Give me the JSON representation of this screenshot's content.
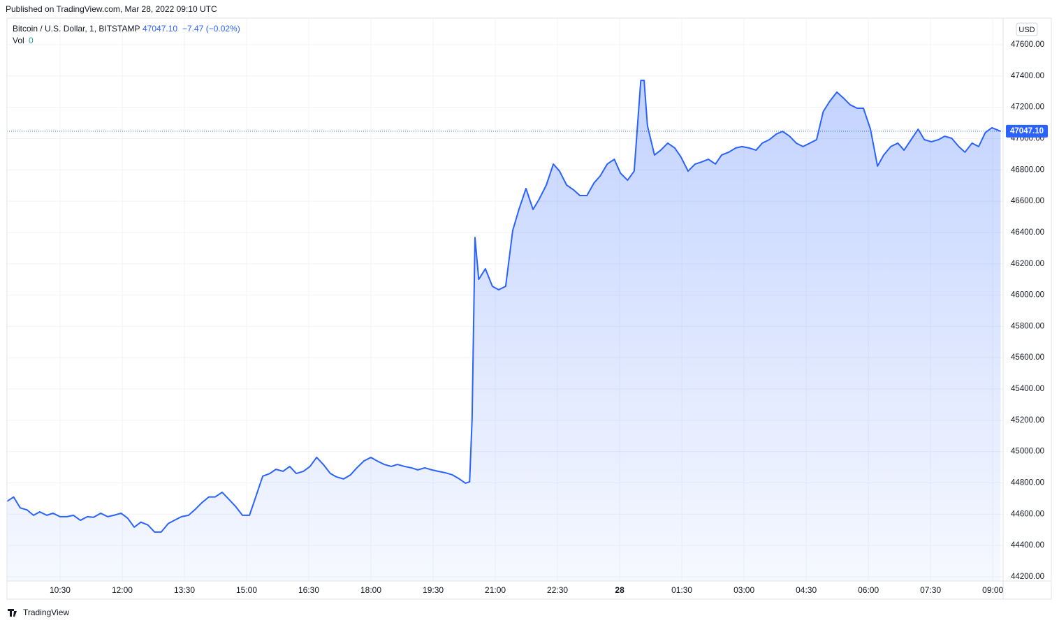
{
  "header": {
    "published": "Published on TradingView.com, Mar 28, 2022 09:10 UTC",
    "footer": "TradingView"
  },
  "chart_data": {
    "type": "area",
    "title": "Bitcoin / U.S. Dollar, 1, BITSTAMP",
    "price_label": "47047.10",
    "change_label": "−7.47 (−0.02%)",
    "volume_label": "Vol",
    "volume_value_label": "0",
    "currency": "USD",
    "color": "#2962ff",
    "grid": true,
    "x": [
      9.22,
      9.38,
      9.54,
      9.7,
      9.86,
      10.01,
      10.18,
      10.33,
      10.5,
      10.67,
      10.82,
      10.99,
      11.16,
      11.31,
      11.48,
      11.65,
      11.8,
      11.97,
      12.13,
      12.29,
      12.45,
      12.62,
      12.78,
      12.94,
      13.11,
      13.26,
      13.43,
      13.6,
      13.75,
      13.92,
      14.09,
      14.24,
      14.41,
      14.57,
      14.73,
      14.9,
      15.07,
      15.22,
      15.39,
      15.56,
      15.71,
      15.88,
      16.04,
      16.2,
      16.37,
      16.53,
      16.69,
      16.85,
      17.02,
      17.17,
      17.34,
      17.51,
      17.66,
      17.83,
      18.0,
      18.15,
      18.32,
      18.49,
      18.64,
      18.81,
      18.98,
      19.13,
      19.3,
      19.47,
      19.62,
      19.79,
      19.96,
      20.11,
      20.28,
      20.38,
      20.44,
      20.51,
      20.6,
      20.76,
      20.93,
      21.08,
      21.25,
      21.42,
      21.57,
      21.74,
      21.91,
      22.06,
      22.23,
      22.4,
      22.55,
      22.72,
      22.89,
      23.04,
      23.21,
      23.38,
      23.53,
      23.7,
      23.87,
      24.02,
      24.19,
      24.35,
      24.51,
      24.59,
      24.67,
      24.84,
      24.99,
      25.16,
      25.33,
      25.48,
      25.65,
      25.82,
      25.97,
      26.14,
      26.31,
      26.46,
      26.63,
      26.8,
      26.95,
      27.12,
      27.29,
      27.44,
      27.61,
      27.78,
      27.93,
      28.1,
      28.26,
      28.42,
      28.59,
      28.75,
      28.91,
      29.07,
      29.24,
      29.39,
      29.56,
      29.73,
      29.88,
      30.05,
      30.22,
      30.37,
      30.54,
      30.71,
      30.86,
      31.03,
      31.2,
      31.35,
      31.52,
      31.69,
      31.84,
      32.01,
      32.18,
      32.33,
      32.5,
      32.66,
      32.82,
      32.98,
      33.19
    ],
    "values": [
      44682,
      44710,
      44640,
      44628,
      44593,
      44615,
      44593,
      44606,
      44584,
      44584,
      44593,
      44561,
      44584,
      44580,
      44606,
      44584,
      44593,
      44606,
      44575,
      44517,
      44549,
      44531,
      44486,
      44486,
      44540,
      44561,
      44584,
      44593,
      44628,
      44673,
      44710,
      44710,
      44740,
      44696,
      44651,
      44593,
      44593,
      44710,
      44843,
      44860,
      44887,
      44874,
      44905,
      44860,
      44874,
      44905,
      44963,
      44918,
      44860,
      44838,
      44825,
      44852,
      44896,
      44940,
      44963,
      44940,
      44918,
      44905,
      44918,
      44905,
      44896,
      44883,
      44896,
      44883,
      44874,
      44865,
      44852,
      44829,
      44798,
      44807,
      45208,
      46368,
      46100,
      46168,
      46056,
      46034,
      46056,
      46413,
      46547,
      46681,
      46547,
      46614,
      46703,
      46837,
      46792,
      46703,
      46672,
      46636,
      46636,
      46716,
      46761,
      46837,
      46868,
      46779,
      46734,
      46792,
      47372,
      47372,
      47082,
      46895,
      46926,
      46971,
      46940,
      46882,
      46792,
      46837,
      46850,
      46868,
      46837,
      46895,
      46913,
      46940,
      46949,
      46940,
      46926,
      46971,
      46993,
      47029,
      47046,
      47015,
      46971,
      46949,
      46971,
      46993,
      47172,
      47239,
      47297,
      47261,
      47216,
      47194,
      47194,
      47060,
      46824,
      46895,
      46949,
      46971,
      46926,
      46993,
      47060,
      46993,
      46980,
      46993,
      47015,
      47002,
      46949,
      46913,
      46971,
      46949,
      47038,
      47069,
      47047.1
    ],
    "xlim": [
      9.22,
      33.25
    ],
    "ylim": [
      44173,
      47765
    ],
    "xticks": [
      {
        "value": 10.5,
        "label": "10:30"
      },
      {
        "value": 12,
        "label": "12:00"
      },
      {
        "value": 13.5,
        "label": "13:30"
      },
      {
        "value": 15,
        "label": "15:00"
      },
      {
        "value": 16.5,
        "label": "16:30"
      },
      {
        "value": 18,
        "label": "18:00"
      },
      {
        "value": 19.5,
        "label": "19:30"
      },
      {
        "value": 21,
        "label": "21:00"
      },
      {
        "value": 22.5,
        "label": "22:30"
      },
      {
        "value": 24,
        "label": "28"
      },
      {
        "value": 25.5,
        "label": "01:30"
      },
      {
        "value": 27,
        "label": "03:00"
      },
      {
        "value": 28.5,
        "label": "04:30"
      },
      {
        "value": 30,
        "label": "06:00"
      },
      {
        "value": 31.5,
        "label": "07:30"
      },
      {
        "value": 33,
        "label": "09:00"
      }
    ],
    "yticks": [
      {
        "value": 44200,
        "label": "44200.00"
      },
      {
        "value": 44400,
        "label": "44400.00"
      },
      {
        "value": 44600,
        "label": "44600.00"
      },
      {
        "value": 44800,
        "label": "44800.00"
      },
      {
        "value": 45000,
        "label": "45000.00"
      },
      {
        "value": 45200,
        "label": "45200.00"
      },
      {
        "value": 45400,
        "label": "45400.00"
      },
      {
        "value": 45600,
        "label": "45600.00"
      },
      {
        "value": 45800,
        "label": "45800.00"
      },
      {
        "value": 46000,
        "label": "46000.00"
      },
      {
        "value": 46200,
        "label": "46200.00"
      },
      {
        "value": 46400,
        "label": "46400.00"
      },
      {
        "value": 46600,
        "label": "46600.00"
      },
      {
        "value": 46800,
        "label": "46800.00"
      },
      {
        "value": 47000,
        "label": "47000.00"
      },
      {
        "value": 47200,
        "label": "47200.00"
      },
      {
        "value": 47400,
        "label": "47400.00"
      },
      {
        "value": 47600,
        "label": "47600.00"
      }
    ]
  }
}
